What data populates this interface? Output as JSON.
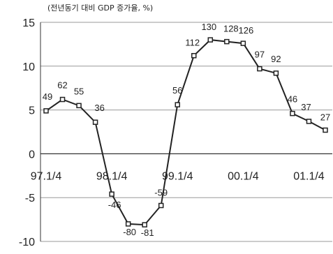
{
  "chart_data": {
    "type": "line",
    "title": "(전년동기 대비 GDP 증가율, %)",
    "ylim": [
      -10,
      15
    ],
    "yticks": [
      -10,
      -5,
      0,
      5,
      10,
      15
    ],
    "y_tick_labels": [
      "-10",
      "-5",
      "0",
      "5",
      "10",
      "15"
    ],
    "x_tick_labels": [
      "97.1/4",
      "98.1/4",
      "99.1/4",
      "00.1/4",
      "01.1/4"
    ],
    "x_tick_index": [
      0,
      4,
      8,
      12,
      16
    ],
    "grid": "horizontal",
    "series": [
      {
        "values": [
          4.9,
          6.2,
          5.5,
          3.6,
          -4.6,
          -8.0,
          -8.1,
          -5.9,
          5.6,
          11.2,
          13.0,
          12.8,
          12.6,
          9.7,
          9.2,
          4.6,
          3.7,
          2.7
        ],
        "labels": [
          "49",
          "62",
          "55",
          "36",
          "-46",
          "-80",
          "-81",
          "-59",
          "56",
          "112",
          "130",
          "128",
          "126",
          "97",
          "92",
          "46",
          "37",
          "27"
        ]
      }
    ],
    "colors": {
      "line": "#222222",
      "grid": "#999999",
      "marker_fill": "#ffffff"
    }
  }
}
